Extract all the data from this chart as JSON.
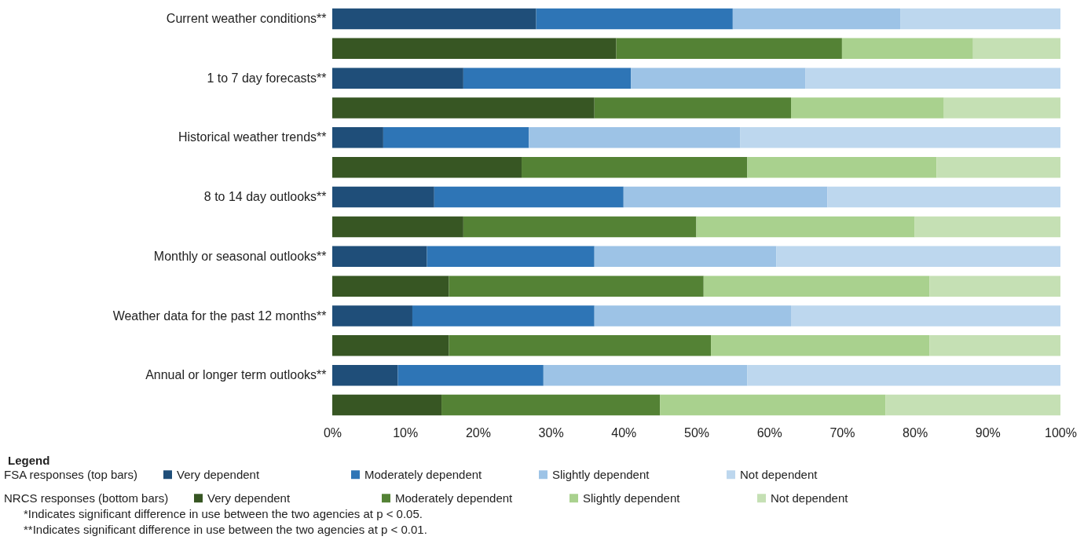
{
  "chart_data": {
    "type": "bar",
    "orientation": "horizontal",
    "stacked": true,
    "legend": "bottom",
    "legend_title": "Legend",
    "categories": [
      "Current weather conditions**",
      null,
      "1 to 7 day forecasts**",
      null,
      "Historical weather trends**",
      null,
      "8 to 14 day outlooks**",
      null,
      "Monthly or seasonal outlooks**",
      null,
      "Weather data for the past 12 months**",
      null,
      "Annual or longer term outlooks**",
      null
    ],
    "series": [
      {
        "name": "Very dependent",
        "color": "#1f4e79",
        "values": [
          28,
          null,
          18,
          null,
          7,
          null,
          14,
          null,
          13,
          null,
          11,
          null,
          9,
          null
        ]
      },
      {
        "name": "Moderately dependent",
        "color": "#2e75b6",
        "values": [
          27,
          null,
          23,
          null,
          20,
          null,
          26,
          null,
          23,
          null,
          25,
          null,
          20,
          null
        ]
      },
      {
        "name": "Slightly dependent",
        "color": "#9dc3e6",
        "values": [
          23,
          null,
          24,
          null,
          29,
          null,
          28,
          null,
          25,
          null,
          27,
          null,
          28,
          null
        ]
      },
      {
        "name": "Not dependent",
        "color": "#bdd7ee",
        "values": [
          22,
          null,
          35,
          null,
          44,
          null,
          32,
          null,
          39,
          null,
          37,
          null,
          43,
          null
        ]
      },
      {
        "name": "Very dependent",
        "color": "#375623",
        "values": [
          null,
          39,
          null,
          36,
          null,
          26,
          null,
          18,
          null,
          16,
          null,
          16,
          null,
          15
        ]
      },
      {
        "name": "Moderately dependent",
        "color": "#548235",
        "values": [
          null,
          31,
          null,
          27,
          null,
          31,
          null,
          32,
          null,
          35,
          null,
          36,
          null,
          30
        ]
      },
      {
        "name": "Slightly dependent",
        "color": "#a9d18e",
        "values": [
          null,
          18,
          null,
          21,
          null,
          26,
          null,
          30,
          null,
          31,
          null,
          30,
          null,
          31
        ]
      },
      {
        "name": "Not dependent",
        "color": "#c5e0b4",
        "values": [
          null,
          12,
          null,
          16,
          null,
          17,
          null,
          20,
          null,
          18,
          null,
          18,
          null,
          24
        ]
      }
    ],
    "xlim": [
      0,
      100
    ],
    "xticks": [
      {
        "value": 0,
        "label": "0%"
      },
      {
        "value": 10,
        "label": "10%"
      },
      {
        "value": 20,
        "label": "20%"
      },
      {
        "value": 30,
        "label": "30%"
      },
      {
        "value": 40,
        "label": "40%"
      },
      {
        "value": 50,
        "label": "50%"
      },
      {
        "value": 60,
        "label": "60%"
      },
      {
        "value": 70,
        "label": "70%"
      },
      {
        "value": 80,
        "label": "80%"
      },
      {
        "value": 90,
        "label": "90%"
      },
      {
        "value": 100,
        "label": "100%"
      }
    ],
    "grid": false,
    "annotations": [
      "FSA responses (top bars)",
      "NRCS responses (bottom bars)",
      "*Indicates significant difference in use between the two agencies at p < 0.05.",
      "**Indicates significant difference in use between the two agencies at p < 0.01."
    ]
  }
}
